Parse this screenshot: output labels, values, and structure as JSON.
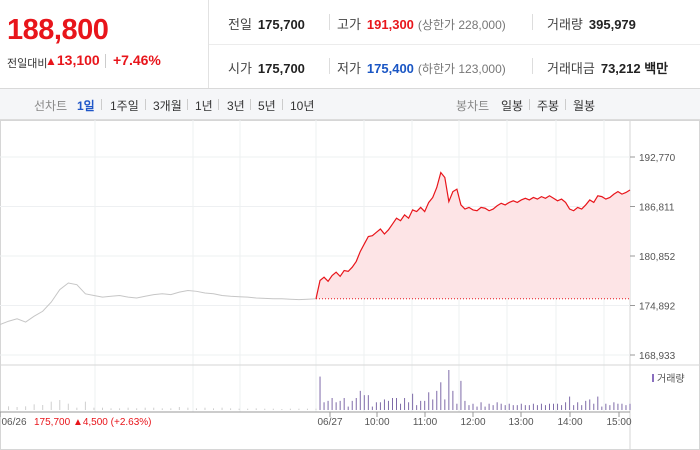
{
  "quote": {
    "price": "188,800",
    "change_label": "전일대비",
    "change_arrow": "▲",
    "change_value": "13,100",
    "change_pct": "+7.46%",
    "colors": {
      "up": "#e8151b",
      "down": "#1a56c4"
    }
  },
  "stats": {
    "prev_close_label": "전일",
    "prev_close": "175,700",
    "high_label": "고가",
    "high": "191,300",
    "upper_limit_text": "(상한가 228,000)",
    "volume_label": "거래량",
    "volume": "395,979",
    "open_label": "시가",
    "open": "175,700",
    "low_label": "저가",
    "low": "175,400",
    "lower_limit_text": "(하한가 123,000)",
    "amount_label": "거래대금",
    "amount": "73,212 백만"
  },
  "tabs": {
    "line_label": "선차트",
    "line": [
      "1일",
      "1주일",
      "3개월",
      "1년",
      "3년",
      "5년",
      "10년"
    ],
    "line_selected": "1일",
    "candle_label": "봉차트",
    "candle": [
      "일봉",
      "주봉",
      "월봉"
    ]
  },
  "chart_data": {
    "type": "area",
    "y_ticks": [
      "192,770",
      "186,811",
      "180,852",
      "174,892",
      "168,933"
    ],
    "ylim": [
      168933,
      192770
    ],
    "x_tick_labels": [
      "06/26",
      "06/27",
      "10:00",
      "11:00",
      "12:00",
      "13:00",
      "14:00",
      "15:00"
    ],
    "prev_day": {
      "date": "06/26",
      "close": "175,700",
      "change_arrow": "▲",
      "change": "4,500",
      "change_pct": "(+2.63%)",
      "prices": [
        172600,
        173000,
        173300,
        172900,
        173600,
        174200,
        175300,
        176800,
        177600,
        177400,
        176300,
        176100,
        175900,
        176000,
        176100,
        175900,
        175800,
        176000,
        176200,
        176300,
        176200,
        176500,
        176700,
        176600,
        176400,
        176300,
        176100,
        176000,
        175950,
        175900,
        175800,
        175750,
        175700,
        175700,
        175650,
        175600,
        175650,
        175700
      ]
    },
    "today": {
      "date": "06/27",
      "base": 175700,
      "prices": [
        175700,
        177900,
        178300,
        177800,
        178500,
        178900,
        178400,
        179100,
        179000,
        179500,
        180200,
        181400,
        182300,
        183200,
        183300,
        183700,
        184100,
        183500,
        184000,
        184700,
        185400,
        185100,
        185800,
        185400,
        186400,
        186200,
        186700,
        186200,
        187300,
        187900,
        189100,
        190900,
        190300,
        187400,
        188600,
        188900,
        187000,
        186500,
        186700,
        186400,
        186300,
        186700,
        186600,
        186300,
        186500,
        186900,
        187200,
        187000,
        187300,
        187500,
        187300,
        187600,
        187800,
        187600,
        187900,
        187700,
        188000,
        187800,
        188100,
        187800,
        187500,
        187700,
        187300,
        186500,
        186300,
        186700,
        186500,
        187000,
        187600,
        187300,
        188100,
        188000,
        187700,
        187900,
        188300,
        188600,
        188300,
        188500,
        188800
      ]
    },
    "volume_legend": "거래량"
  }
}
